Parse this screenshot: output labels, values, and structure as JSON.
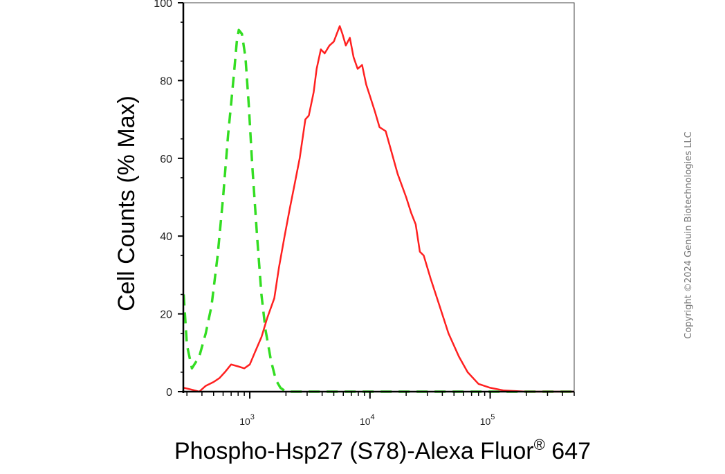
{
  "chart_data": {
    "type": "area",
    "xlabel": "Phospho-Hsp27 (S78)-Alexa Fluor",
    "xlabel_superscript": "®",
    "xlabel_suffix": " 647",
    "ylabel": "Cell Counts (% Max)",
    "x_scale": "log",
    "xlim": [
      280,
      500000
    ],
    "ylim": [
      0,
      100
    ],
    "y_ticks": [
      0,
      20,
      40,
      60,
      80,
      100
    ],
    "y_tick_labels": [
      "0",
      "20",
      "40",
      "60",
      "80",
      "100"
    ],
    "x_ticks": [
      1000,
      10000,
      100000
    ],
    "x_tick_labels": [
      {
        "base": "10",
        "exp": "3"
      },
      {
        "base": "10",
        "exp": "4"
      },
      {
        "base": "10",
        "exp": "5"
      }
    ],
    "grid": false,
    "series": [
      {
        "color": "#33dd22",
        "dash": true,
        "points": [
          [
            282,
            25
          ],
          [
            300,
            12
          ],
          [
            330,
            6
          ],
          [
            380,
            9
          ],
          [
            430,
            15
          ],
          [
            480,
            22
          ],
          [
            540,
            35
          ],
          [
            600,
            50
          ],
          [
            660,
            66
          ],
          [
            700,
            74
          ],
          [
            740,
            82
          ],
          [
            780,
            90
          ],
          [
            810,
            93
          ],
          [
            860,
            92
          ],
          [
            920,
            86
          ],
          [
            980,
            74
          ],
          [
            1050,
            58
          ],
          [
            1150,
            40
          ],
          [
            1250,
            25
          ],
          [
            1350,
            16
          ],
          [
            1500,
            8
          ],
          [
            1650,
            3
          ],
          [
            1800,
            1
          ],
          [
            2000,
            0
          ],
          [
            2500,
            0
          ],
          [
            500000,
            0
          ]
        ]
      },
      {
        "color": "#ff2020",
        "dash": false,
        "points": [
          [
            282,
            1
          ],
          [
            330,
            0.5
          ],
          [
            380,
            0
          ],
          [
            430,
            1.5
          ],
          [
            500,
            2.5
          ],
          [
            560,
            3.5
          ],
          [
            620,
            5
          ],
          [
            700,
            7
          ],
          [
            800,
            6.5
          ],
          [
            900,
            6
          ],
          [
            1000,
            7
          ],
          [
            1100,
            10
          ],
          [
            1250,
            14
          ],
          [
            1400,
            19
          ],
          [
            1600,
            24
          ],
          [
            1750,
            32
          ],
          [
            1950,
            40
          ],
          [
            2150,
            47
          ],
          [
            2350,
            53
          ],
          [
            2600,
            60
          ],
          [
            2900,
            70
          ],
          [
            3100,
            71
          ],
          [
            3400,
            77
          ],
          [
            3600,
            83
          ],
          [
            3900,
            88
          ],
          [
            4200,
            87
          ],
          [
            4600,
            89
          ],
          [
            5000,
            90
          ],
          [
            5600,
            94
          ],
          [
            5900,
            92
          ],
          [
            6300,
            89
          ],
          [
            6800,
            91
          ],
          [
            7300,
            86
          ],
          [
            7900,
            83
          ],
          [
            8600,
            84
          ],
          [
            9300,
            79
          ],
          [
            10000,
            76
          ],
          [
            11000,
            72
          ],
          [
            12000,
            68
          ],
          [
            13500,
            67
          ],
          [
            15000,
            62
          ],
          [
            17000,
            56
          ],
          [
            20000,
            50
          ],
          [
            22000,
            46
          ],
          [
            24000,
            43
          ],
          [
            26000,
            36
          ],
          [
            28000,
            35
          ],
          [
            32000,
            29
          ],
          [
            38000,
            22
          ],
          [
            45000,
            15
          ],
          [
            55000,
            9
          ],
          [
            65000,
            5
          ],
          [
            80000,
            2
          ],
          [
            100000,
            1
          ],
          [
            130000,
            0.3
          ],
          [
            200000,
            0
          ],
          [
            500000,
            0
          ]
        ]
      }
    ]
  },
  "watermark": "Copyright ©2024 Genuin Biotechnologies LLC"
}
